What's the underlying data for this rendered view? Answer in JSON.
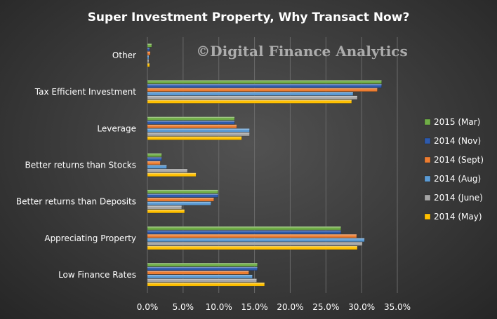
{
  "chart_data": {
    "type": "bar",
    "orientation": "horizontal",
    "title": "Super Investment Property, Why Transact Now?",
    "watermark": "©Digital Finance Analytics",
    "xlabel": "",
    "ylabel": "",
    "xlim": [
      0,
      35
    ],
    "x_ticks": [
      "0.0%",
      "5.0%",
      "10.0%",
      "15.0%",
      "20.0%",
      "25.0%",
      "30.0%",
      "35.0%"
    ],
    "grid": true,
    "legend_position": "right",
    "categories": [
      "Other",
      "Tax Efficient Investment",
      "Leverage",
      "Better returns than Stocks",
      "Better returns than Deposits",
      "Appreciating Property",
      "Low Finance Rates"
    ],
    "series": [
      {
        "name": "2015 (Mar)",
        "color": "#70ad47",
        "values": [
          0.6,
          32.8,
          12.2,
          2.0,
          9.9,
          27.1,
          15.4
        ]
      },
      {
        "name": "2014 (Nov)",
        "color": "#2e5aac",
        "values": [
          0.3,
          32.8,
          12.2,
          2.0,
          9.9,
          27.1,
          15.4
        ]
      },
      {
        "name": "2014 (Sept)",
        "color": "#ed7d31",
        "values": [
          0.4,
          32.2,
          12.5,
          1.8,
          9.3,
          29.3,
          14.2
        ]
      },
      {
        "name": "2014 (Aug)",
        "color": "#5b9bd5",
        "values": [
          0.2,
          28.8,
          14.3,
          2.7,
          8.9,
          30.4,
          14.7
        ]
      },
      {
        "name": "2014 (June)",
        "color": "#a5a5a5",
        "values": [
          0.2,
          29.4,
          14.3,
          5.6,
          4.8,
          30.1,
          15.3
        ]
      },
      {
        "name": "2014 (May)",
        "color": "#ffc000",
        "values": [
          0.3,
          28.6,
          13.2,
          6.8,
          5.2,
          29.4,
          16.4
        ]
      }
    ]
  }
}
